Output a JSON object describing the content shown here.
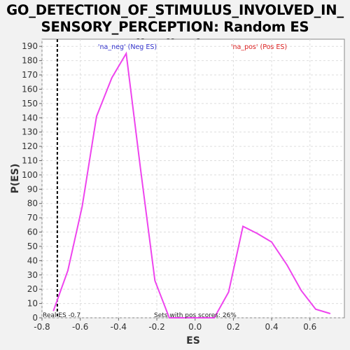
{
  "chart_data": {
    "type": "line",
    "title_line1": "GO_DETECTION_OF_STIMULUS_INVOLVED_IN_",
    "title_line2": "SENSORY_PERCEPTION: Random ES distribution",
    "xlabel": "ES",
    "ylabel": "P(ES)",
    "xlim": [
      -0.8,
      0.78
    ],
    "ylim": [
      0,
      195
    ],
    "xticks": [
      -0.8,
      -0.6,
      -0.4,
      -0.2,
      0.0,
      0.2,
      0.4,
      0.6
    ],
    "xtick_labels": [
      "-0.8",
      "-0.6",
      "-0.4",
      "-0.2",
      "0.0",
      "0.2",
      "0.4",
      "0.6"
    ],
    "yticks": [
      0,
      10,
      20,
      30,
      40,
      50,
      60,
      70,
      80,
      90,
      100,
      110,
      120,
      130,
      140,
      150,
      160,
      170,
      180,
      190
    ],
    "ytick_labels": [
      "0",
      "10",
      "20",
      "30",
      "40",
      "50",
      "60",
      "70",
      "80",
      "90",
      "100",
      "110",
      "120",
      "130",
      "140",
      "150",
      "160",
      "170",
      "180",
      "190"
    ],
    "grid": true,
    "series": [
      {
        "color": "#ee44ee",
        "x": [
          -0.74,
          -0.665,
          -0.59,
          -0.515,
          -0.435,
          -0.36,
          -0.285,
          -0.21,
          -0.135,
          -0.06,
          0.1,
          0.175,
          0.25,
          0.325,
          0.4,
          0.48,
          0.555,
          0.63,
          0.705
        ],
        "y": [
          5,
          33,
          78,
          141,
          168,
          185,
          104,
          26,
          0,
          0,
          0,
          18,
          64,
          59,
          53,
          37,
          19,
          6,
          3
        ]
      }
    ],
    "real_es": -0.72,
    "legend_neg": {
      "text": "'na_neg' (Neg ES)",
      "color": "#3333cc"
    },
    "legend_pos": {
      "text": "'na_pos' (Pos ES)",
      "color": "#dd2222"
    },
    "annotation_real_es": "Real ES -0.7",
    "annotation_pos_sets": "Sets with pos scores: 26%"
  }
}
